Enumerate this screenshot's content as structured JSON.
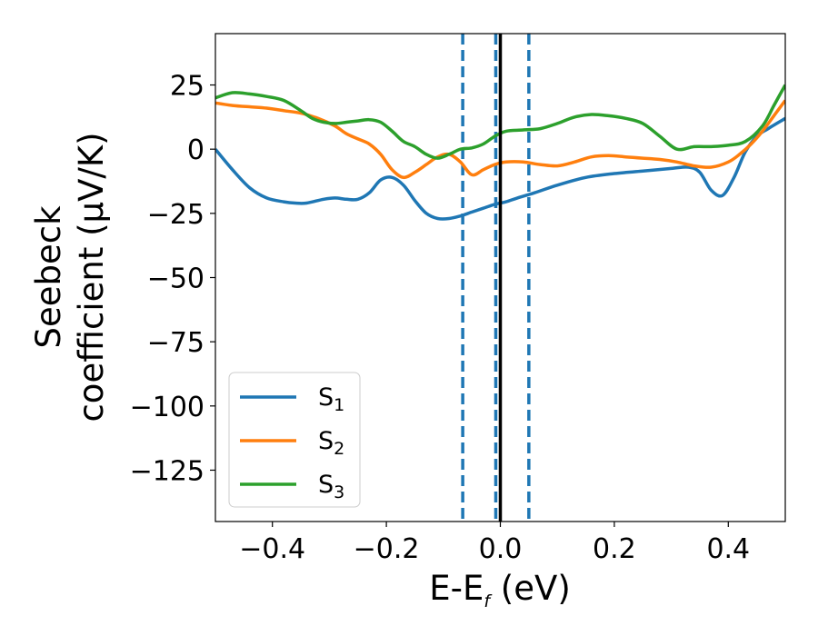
{
  "chart_data": {
    "type": "line",
    "xlabel_main": "E-E",
    "xlabel_sub": "f",
    "xlabel_unit": " (eV)",
    "ylabel_line1": "Seebeck",
    "ylabel_line2": "coefficient  (μV/K)",
    "xlim": [
      -0.5,
      0.5
    ],
    "ylim": [
      -145,
      45
    ],
    "xticks": [
      -0.4,
      -0.2,
      0.0,
      0.2,
      0.4
    ],
    "xtick_labels": [
      "−0.4",
      "−0.2",
      "0.0",
      "0.2",
      "0.4"
    ],
    "yticks": [
      25,
      0,
      -25,
      -50,
      -75,
      -100,
      -125
    ],
    "ytick_labels": [
      "25",
      "0",
      "−25",
      "−50",
      "−75",
      "−100",
      "−125"
    ],
    "legend_position": "lower-left",
    "vlines_solid": [
      0.0
    ],
    "vlines_dashed": [
      -0.066,
      -0.008,
      0.05
    ],
    "series": [
      {
        "name": "S",
        "sub": "1",
        "color": "#1f77b4",
        "x": [
          -0.5,
          -0.47,
          -0.44,
          -0.41,
          -0.38,
          -0.36,
          -0.34,
          -0.31,
          -0.29,
          -0.27,
          -0.25,
          -0.23,
          -0.21,
          -0.19,
          -0.17,
          -0.15,
          -0.13,
          -0.11,
          -0.09,
          -0.07,
          -0.05,
          -0.03,
          -0.01,
          0.01,
          0.03,
          0.06,
          0.1,
          0.15,
          0.2,
          0.25,
          0.3,
          0.33,
          0.35,
          0.37,
          0.39,
          0.41,
          0.43,
          0.45,
          0.47,
          0.5
        ],
        "y": [
          0,
          -8,
          -15,
          -19,
          -20.5,
          -21,
          -21,
          -19.5,
          -19,
          -19.5,
          -19.5,
          -17,
          -12,
          -11,
          -14,
          -20,
          -25,
          -27,
          -27,
          -26,
          -24.5,
          -23,
          -21.5,
          -20.5,
          -19,
          -17,
          -14,
          -11,
          -9.5,
          -8.5,
          -7.5,
          -7,
          -9,
          -16,
          -18,
          -11,
          -1,
          5,
          8,
          12
        ]
      },
      {
        "name": "S",
        "sub": "2",
        "color": "#ff7f0e",
        "x": [
          -0.5,
          -0.47,
          -0.44,
          -0.41,
          -0.38,
          -0.35,
          -0.32,
          -0.29,
          -0.27,
          -0.25,
          -0.23,
          -0.21,
          -0.19,
          -0.17,
          -0.15,
          -0.13,
          -0.11,
          -0.09,
          -0.07,
          -0.05,
          -0.03,
          -0.01,
          0.01,
          0.04,
          0.07,
          0.1,
          0.13,
          0.16,
          0.19,
          0.22,
          0.25,
          0.28,
          0.31,
          0.34,
          0.37,
          0.4,
          0.42,
          0.44,
          0.46,
          0.48,
          0.5
        ],
        "y": [
          18,
          17,
          16.5,
          16,
          15,
          14,
          12,
          9,
          6,
          4,
          2,
          -2,
          -8,
          -11,
          -9,
          -6,
          -3,
          -2,
          -5,
          -10,
          -8,
          -6,
          -5,
          -5,
          -6,
          -6.5,
          -5,
          -3,
          -2.5,
          -3,
          -3.5,
          -4,
          -5,
          -6.5,
          -7,
          -5,
          -2,
          2,
          7,
          13,
          19
        ]
      },
      {
        "name": "S",
        "sub": "3",
        "color": "#2ca02c",
        "x": [
          -0.5,
          -0.47,
          -0.44,
          -0.41,
          -0.38,
          -0.35,
          -0.33,
          -0.31,
          -0.29,
          -0.27,
          -0.25,
          -0.23,
          -0.21,
          -0.19,
          -0.17,
          -0.15,
          -0.13,
          -0.11,
          -0.09,
          -0.07,
          -0.05,
          -0.03,
          -0.01,
          0.01,
          0.04,
          0.07,
          0.1,
          0.13,
          0.16,
          0.19,
          0.22,
          0.25,
          0.28,
          0.31,
          0.34,
          0.37,
          0.4,
          0.43,
          0.46,
          0.48,
          0.5
        ],
        "y": [
          20,
          22,
          21.5,
          20.5,
          19,
          15,
          12,
          10.5,
          10,
          10.5,
          11,
          11.5,
          10.5,
          7,
          3,
          1,
          -2,
          -3.5,
          -2,
          0,
          0.5,
          2,
          5,
          7,
          7.5,
          8,
          10,
          12.5,
          13.5,
          13,
          12,
          10,
          5,
          0,
          1,
          1,
          1.5,
          3,
          9,
          17,
          25
        ]
      }
    ]
  }
}
